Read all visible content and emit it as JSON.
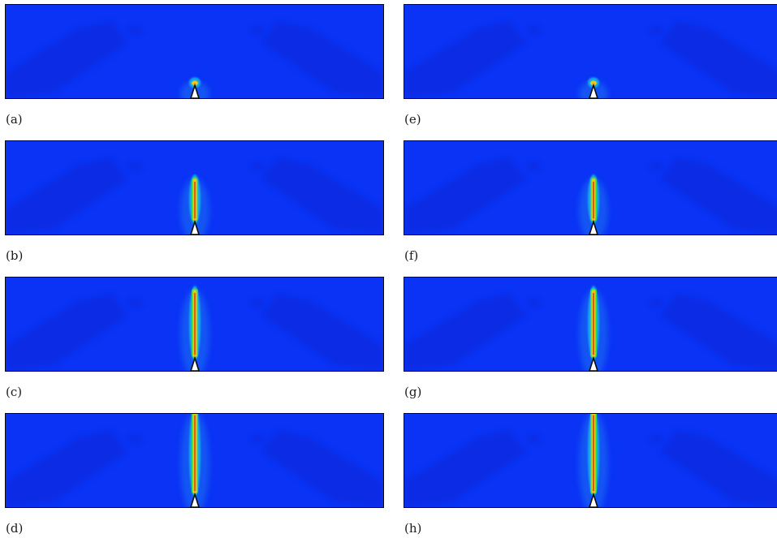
{
  "panels": [
    {
      "label": "(a)",
      "crack_extent": 0.06
    },
    {
      "label": "(b)",
      "crack_extent": 0.48
    },
    {
      "label": "(c)",
      "crack_extent": 0.75
    },
    {
      "label": "(d)",
      "crack_extent": 0.9
    },
    {
      "label": "(e)",
      "crack_extent": 0.06
    },
    {
      "label": "(f)",
      "crack_extent": 0.48
    },
    {
      "label": "(g)",
      "crack_extent": 0.75
    },
    {
      "label": "(h)",
      "crack_extent": 0.9
    }
  ],
  "colors": {
    "field_background": "#0a33f5",
    "shadow_band": "#0826d8",
    "halo_outer": "#1a72f2",
    "halo_mid": "#18b8e8",
    "crack_core": "#e8c81c",
    "crack_edge": "#2ed860",
    "crack_hot": "#d84a10",
    "notch_fill": "#ffffff",
    "frame": "#0a0a0a"
  }
}
